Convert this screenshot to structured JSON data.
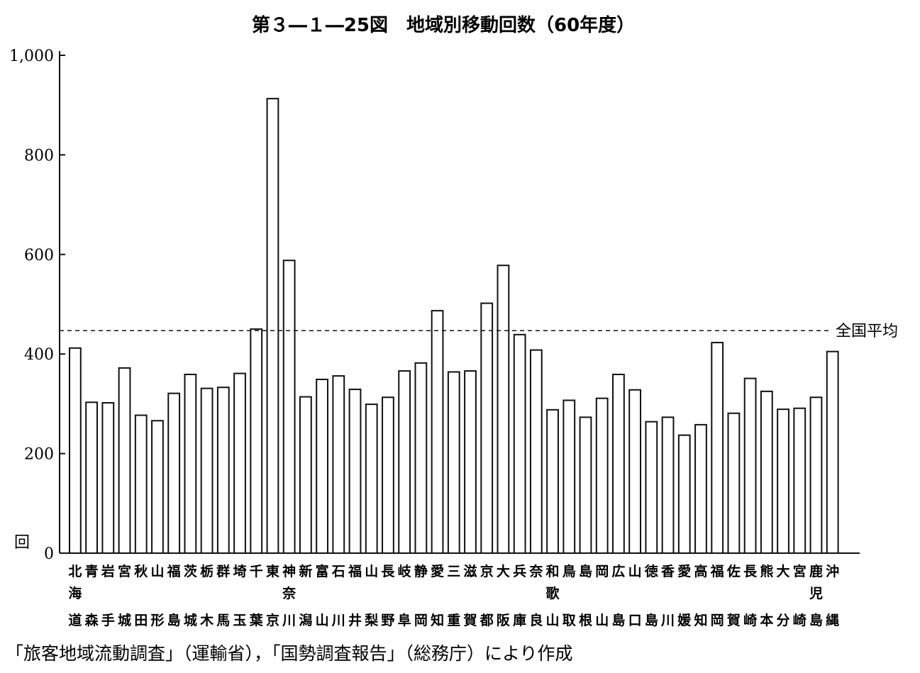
{
  "title": "第３―１―25図　地域別移動回数（60年度）",
  "source": "「旅客地域流動調査」（運輸省），「国勢調査報告」（総務庁）により作成",
  "chart_data": {
    "type": "bar",
    "title": "第３―１―25図　地域別移動回数（60年度）",
    "ylabel": "回",
    "ylim": [
      0,
      1000
    ],
    "yticks": [
      0,
      200,
      400,
      600,
      800,
      1000
    ],
    "ytick_labels": [
      "0",
      "200",
      "400",
      "600",
      "800",
      "1,000"
    ],
    "categories": [
      "北海道",
      "青森",
      "岩手",
      "宮城",
      "秋田",
      "山形",
      "福島",
      "茨城",
      "栃木",
      "群馬",
      "埼玉",
      "千葉",
      "東京",
      "神奈川",
      "新潟",
      "富山",
      "石川",
      "福井",
      "山梨",
      "長野",
      "岐阜",
      "静岡",
      "愛知",
      "三重",
      "滋賀",
      "京都",
      "大阪",
      "兵庫",
      "奈良",
      "和歌山",
      "鳥取",
      "島根",
      "岡山",
      "広島",
      "山口",
      "徳島",
      "香川",
      "愛媛",
      "高知",
      "福岡",
      "佐賀",
      "長崎",
      "熊本",
      "大分",
      "宮崎",
      "鹿児島",
      "沖縄"
    ],
    "values": [
      412,
      303,
      302,
      372,
      277,
      266,
      321,
      359,
      331,
      333,
      361,
      450,
      913,
      588,
      314,
      349,
      356,
      329,
      299,
      313,
      366,
      382,
      487,
      364,
      366,
      502,
      578,
      439,
      408,
      288,
      307,
      273,
      311,
      359,
      328,
      264,
      273,
      237,
      258,
      423,
      281,
      351,
      325,
      289,
      291,
      313,
      405
    ],
    "reference_line": {
      "label": "全国平均",
      "value": 447
    },
    "grid": false
  }
}
